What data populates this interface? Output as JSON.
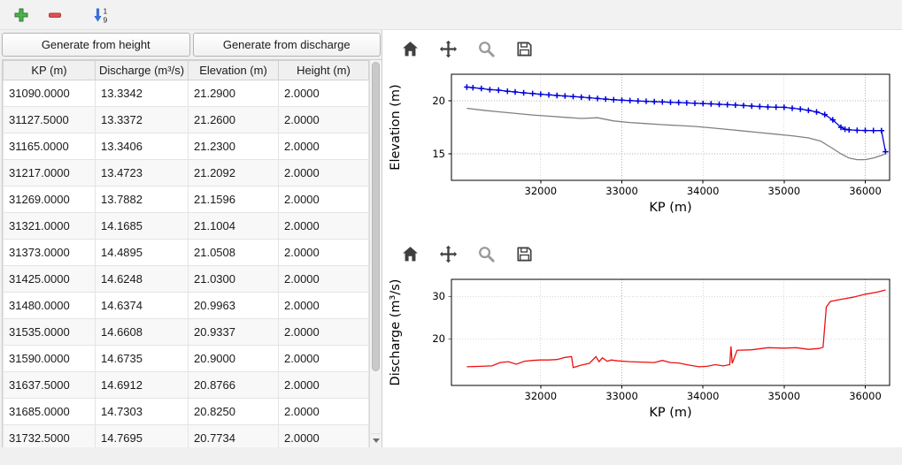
{
  "window": {
    "background": "#f0f0f0",
    "accent_blue": "#3b6fd4",
    "accent_green": "#4db34d",
    "accent_red": "#e05050"
  },
  "main_toolbar": {
    "buttons": [
      {
        "name": "add-row",
        "icon": "plus-icon",
        "color": "#4db34d"
      },
      {
        "name": "remove-row",
        "icon": "minus-icon",
        "color": "#e05050"
      },
      {
        "name": "sort-rows",
        "icon": "sort-numeric-down-icon",
        "color": "#3b6fd4",
        "digits": [
          "1",
          "9"
        ]
      }
    ]
  },
  "left_panel": {
    "buttons": [
      {
        "label": "Generate from height"
      },
      {
        "label": "Generate from discharge"
      }
    ],
    "table": {
      "columns": [
        "KP (m)",
        "Discharge (m³/s)",
        "Elevation (m)",
        "Height (m)"
      ],
      "rows": [
        [
          "31090.0000",
          "13.3342",
          "21.2900",
          "2.0000"
        ],
        [
          "31127.5000",
          "13.3372",
          "21.2600",
          "2.0000"
        ],
        [
          "31165.0000",
          "13.3406",
          "21.2300",
          "2.0000"
        ],
        [
          "31217.0000",
          "13.4723",
          "21.2092",
          "2.0000"
        ],
        [
          "31269.0000",
          "13.7882",
          "21.1596",
          "2.0000"
        ],
        [
          "31321.0000",
          "14.1685",
          "21.1004",
          "2.0000"
        ],
        [
          "31373.0000",
          "14.4895",
          "21.0508",
          "2.0000"
        ],
        [
          "31425.0000",
          "14.6248",
          "21.0300",
          "2.0000"
        ],
        [
          "31480.0000",
          "14.6374",
          "20.9963",
          "2.0000"
        ],
        [
          "31535.0000",
          "14.6608",
          "20.9337",
          "2.0000"
        ],
        [
          "31590.0000",
          "14.6735",
          "20.9000",
          "2.0000"
        ],
        [
          "31637.5000",
          "14.6912",
          "20.8766",
          "2.0000"
        ],
        [
          "31685.0000",
          "14.7303",
          "20.8250",
          "2.0000"
        ],
        [
          "31732.5000",
          "14.7695",
          "20.7734",
          "2.0000"
        ]
      ]
    }
  },
  "chart_toolbars": {
    "icons": [
      "home",
      "pan",
      "zoom",
      "save"
    ]
  },
  "chart_data": [
    {
      "type": "line",
      "title": "",
      "xlabel": "KP (m)",
      "ylabel": "Elevation (m)",
      "xlim": [
        30900,
        36300
      ],
      "ylim": [
        12.5,
        22.5
      ],
      "xticks": [
        32000,
        33000,
        34000,
        35000,
        36000
      ],
      "yticks": [
        15,
        20
      ],
      "grid": true,
      "grid_style": "dotted",
      "legend": null,
      "series": [
        {
          "name": "elevation",
          "color": "#0000dd",
          "marker": "+",
          "x": [
            31090,
            31165,
            31269,
            31373,
            31480,
            31590,
            31685,
            31790,
            31900,
            32000,
            32100,
            32200,
            32300,
            32400,
            32500,
            32600,
            32700,
            32800,
            32900,
            33000,
            33100,
            33200,
            33300,
            33400,
            33500,
            33600,
            33700,
            33800,
            33900,
            34000,
            34100,
            34200,
            34300,
            34400,
            34500,
            34600,
            34700,
            34800,
            34900,
            35000,
            35100,
            35200,
            35300,
            35400,
            35500,
            35600,
            35700,
            35750,
            35800,
            35900,
            36000,
            36100,
            36200,
            36250
          ],
          "y": [
            21.29,
            21.23,
            21.16,
            21.05,
            21.0,
            20.9,
            20.83,
            20.75,
            20.68,
            20.62,
            20.56,
            20.5,
            20.45,
            20.4,
            20.34,
            20.28,
            20.22,
            20.16,
            20.1,
            20.06,
            20.02,
            19.98,
            19.95,
            19.92,
            19.89,
            19.86,
            19.83,
            19.8,
            19.77,
            19.74,
            19.71,
            19.67,
            19.63,
            19.59,
            19.55,
            19.5,
            19.46,
            19.42,
            19.4,
            19.38,
            19.3,
            19.22,
            19.1,
            18.95,
            18.7,
            18.2,
            17.5,
            17.32,
            17.26,
            17.22,
            17.2,
            17.19,
            17.18,
            15.2
          ]
        },
        {
          "name": "channel-bottom",
          "color": "#808080",
          "marker": null,
          "x": [
            31090,
            31300,
            31500,
            31700,
            31900,
            32100,
            32300,
            32500,
            32700,
            32900,
            33100,
            33300,
            33500,
            33700,
            33900,
            34100,
            34300,
            34500,
            34700,
            34900,
            35100,
            35300,
            35450,
            35600,
            35700,
            35800,
            35900,
            36000,
            36100,
            36200,
            36250
          ],
          "y": [
            19.29,
            19.1,
            18.95,
            18.8,
            18.66,
            18.55,
            18.44,
            18.33,
            18.4,
            18.1,
            17.95,
            17.85,
            17.75,
            17.67,
            17.58,
            17.45,
            17.3,
            17.15,
            17.0,
            16.85,
            16.7,
            16.5,
            16.2,
            15.5,
            15.0,
            14.6,
            14.45,
            14.45,
            14.6,
            14.85,
            15.0
          ]
        }
      ]
    },
    {
      "type": "line",
      "title": "",
      "xlabel": "KP (m)",
      "ylabel": "Discharge (m³/s)",
      "xlim": [
        30900,
        36300
      ],
      "ylim": [
        9,
        34
      ],
      "xticks": [
        32000,
        33000,
        34000,
        35000,
        36000
      ],
      "yticks": [
        20,
        30
      ],
      "grid": true,
      "grid_style": "dotted",
      "legend": null,
      "series": [
        {
          "name": "discharge",
          "color": "#ee1111",
          "marker": null,
          "x": [
            31090,
            31250,
            31400,
            31500,
            31600,
            31700,
            31800,
            31900,
            32000,
            32100,
            32200,
            32300,
            32380,
            32400,
            32500,
            32600,
            32680,
            32720,
            32760,
            32820,
            32870,
            32950,
            33100,
            33250,
            33400,
            33500,
            33600,
            33700,
            33800,
            33950,
            34050,
            34150,
            34250,
            34330,
            34345,
            34360,
            34420,
            34600,
            34800,
            35000,
            35150,
            35300,
            35430,
            35480,
            35520,
            35570,
            35700,
            35850,
            36000,
            36150,
            36250
          ],
          "y": [
            13.4,
            13.5,
            13.6,
            14.4,
            14.6,
            14.0,
            14.7,
            14.9,
            15.0,
            15.0,
            15.1,
            15.6,
            15.8,
            13.2,
            13.8,
            14.2,
            15.8,
            14.6,
            15.5,
            14.7,
            15.0,
            14.8,
            14.6,
            14.5,
            14.4,
            14.9,
            14.4,
            14.3,
            13.9,
            13.4,
            13.5,
            13.9,
            13.6,
            13.9,
            18.2,
            14.2,
            17.3,
            17.4,
            17.9,
            17.8,
            17.9,
            17.5,
            17.7,
            18.0,
            27.5,
            28.8,
            29.3,
            29.8,
            30.5,
            31.0,
            31.5
          ]
        }
      ]
    }
  ]
}
